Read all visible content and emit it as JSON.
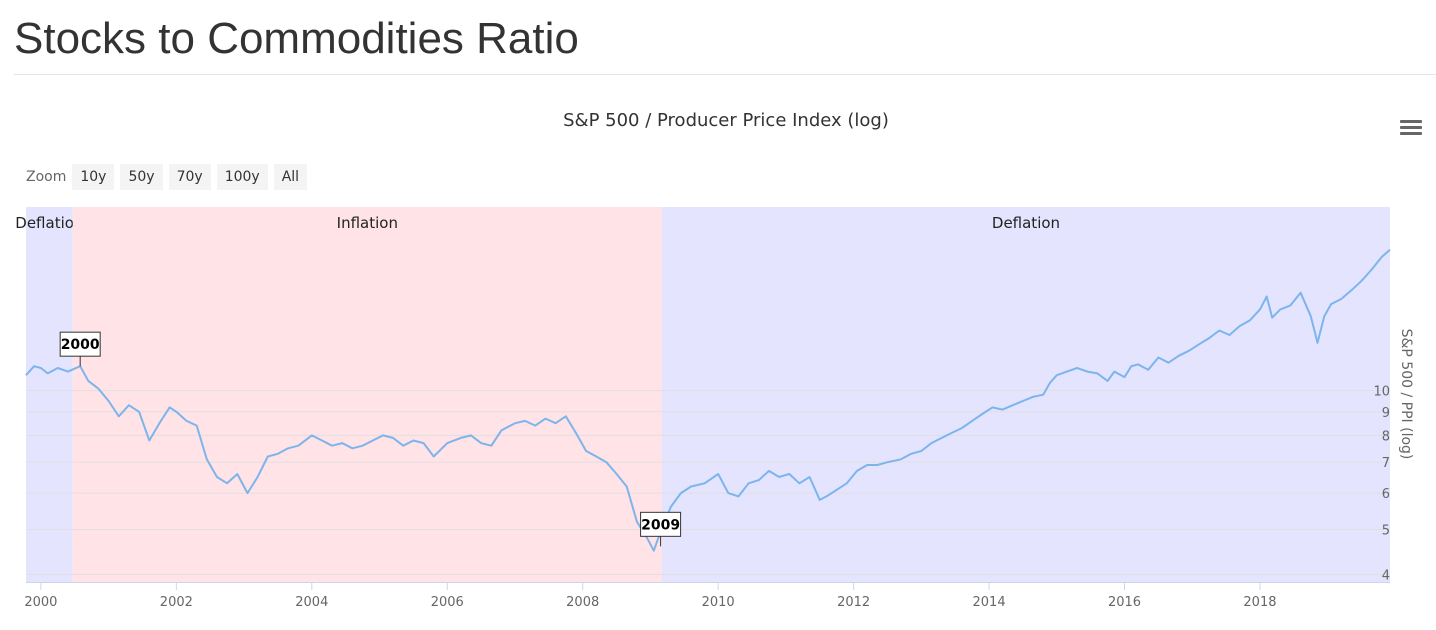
{
  "page": {
    "title": "Stocks to Commodities Ratio"
  },
  "toolbar": {
    "zoom_label": "Zoom",
    "zoom_buttons": [
      "10y",
      "50y",
      "70y",
      "100y",
      "All"
    ]
  },
  "colors": {
    "line": "#7cb5ec",
    "deflation_band": "#e4e4ff",
    "inflation_band": "#ffe3e6",
    "grid": "#e0e0e0"
  },
  "chart_data": {
    "type": "line",
    "title": "S&P 500 / Producer Price Index (log)",
    "ylabel": "S&P 500 / PPI (log)",
    "y_scale": "log",
    "xlim": [
      1999.78,
      2019.92
    ],
    "ylim": [
      3.85,
      25
    ],
    "x_ticks": [
      2000,
      2002,
      2004,
      2006,
      2008,
      2010,
      2012,
      2014,
      2016,
      2018
    ],
    "x_tick_labels": [
      "2000",
      "2002",
      "2004",
      "2006",
      "2008",
      "2010",
      "2012",
      "2014",
      "2016",
      "2018"
    ],
    "y_ticks": [
      4,
      5,
      6,
      7,
      8,
      9,
      10
    ],
    "y_tick_labels": [
      "4",
      "5",
      "6",
      "7",
      "8",
      "9",
      "10"
    ],
    "bands": [
      {
        "label": "Deflation",
        "from": 1999.78,
        "to": 2000.47,
        "kind": "deflation"
      },
      {
        "label": "Inflation",
        "from": 2000.47,
        "to": 2009.17,
        "kind": "inflation"
      },
      {
        "label": "Deflation",
        "from": 2009.17,
        "to": 2019.92,
        "kind": "deflation"
      }
    ],
    "flags": [
      {
        "label": "2000",
        "x": 2000.58,
        "y": 11.3
      },
      {
        "label": "2009",
        "x": 2009.15,
        "y": 4.6
      }
    ],
    "series": [
      {
        "name": "S&P 500 / PPI",
        "x": [
          1999.78,
          1999.9,
          2000.0,
          2000.1,
          2000.25,
          2000.4,
          2000.58,
          2000.7,
          2000.85,
          2001.0,
          2001.15,
          2001.3,
          2001.45,
          2001.6,
          2001.75,
          2001.9,
          2002.0,
          2002.15,
          2002.3,
          2002.45,
          2002.6,
          2002.75,
          2002.9,
          2003.05,
          2003.2,
          2003.35,
          2003.5,
          2003.65,
          2003.8,
          2004.0,
          2004.15,
          2004.3,
          2004.45,
          2004.6,
          2004.75,
          2004.9,
          2005.05,
          2005.2,
          2005.35,
          2005.5,
          2005.65,
          2005.8,
          2006.0,
          2006.2,
          2006.35,
          2006.5,
          2006.65,
          2006.8,
          2007.0,
          2007.15,
          2007.3,
          2007.45,
          2007.6,
          2007.75,
          2007.9,
          2008.05,
          2008.2,
          2008.35,
          2008.5,
          2008.65,
          2008.8,
          2008.95,
          2009.05,
          2009.15,
          2009.3,
          2009.45,
          2009.6,
          2009.8,
          2010.0,
          2010.15,
          2010.3,
          2010.45,
          2010.6,
          2010.75,
          2010.9,
          2011.05,
          2011.2,
          2011.35,
          2011.5,
          2011.6,
          2011.75,
          2011.9,
          2012.05,
          2012.2,
          2012.35,
          2012.5,
          2012.7,
          2012.85,
          2013.0,
          2013.15,
          2013.3,
          2013.45,
          2013.6,
          2013.75,
          2013.9,
          2014.05,
          2014.2,
          2014.35,
          2014.5,
          2014.65,
          2014.8,
          2014.9,
          2015.0,
          2015.15,
          2015.3,
          2015.45,
          2015.6,
          2015.75,
          2015.85,
          2016.0,
          2016.1,
          2016.2,
          2016.35,
          2016.5,
          2016.65,
          2016.8,
          2016.95,
          2017.1,
          2017.25,
          2017.4,
          2017.55,
          2017.7,
          2017.85,
          2018.0,
          2018.1,
          2018.18,
          2018.3,
          2018.45,
          2018.6,
          2018.75,
          2018.85,
          2018.95,
          2019.05,
          2019.2,
          2019.35,
          2019.5,
          2019.65,
          2019.8,
          2019.92
        ],
        "values": [
          10.8,
          11.3,
          11.2,
          10.9,
          11.2,
          11.0,
          11.3,
          10.5,
          10.1,
          9.5,
          8.8,
          9.3,
          9.0,
          7.8,
          8.5,
          9.2,
          9.0,
          8.6,
          8.4,
          7.1,
          6.5,
          6.3,
          6.6,
          6.0,
          6.5,
          7.2,
          7.3,
          7.5,
          7.6,
          8.0,
          7.8,
          7.6,
          7.7,
          7.5,
          7.6,
          7.8,
          8.0,
          7.9,
          7.6,
          7.8,
          7.7,
          7.2,
          7.7,
          7.9,
          8.0,
          7.7,
          7.6,
          8.2,
          8.5,
          8.6,
          8.4,
          8.7,
          8.5,
          8.8,
          8.1,
          7.4,
          7.2,
          7.0,
          6.6,
          6.2,
          5.2,
          4.8,
          4.5,
          4.95,
          5.6,
          6.0,
          6.2,
          6.3,
          6.6,
          6.0,
          5.9,
          6.3,
          6.4,
          6.7,
          6.5,
          6.6,
          6.3,
          6.5,
          5.8,
          5.9,
          6.1,
          6.3,
          6.7,
          6.9,
          6.9,
          7.0,
          7.1,
          7.3,
          7.4,
          7.7,
          7.9,
          8.1,
          8.3,
          8.6,
          8.9,
          9.2,
          9.1,
          9.3,
          9.5,
          9.7,
          9.8,
          10.4,
          10.8,
          11.0,
          11.2,
          11.0,
          10.9,
          10.5,
          11.0,
          10.7,
          11.3,
          11.4,
          11.1,
          11.8,
          11.5,
          11.9,
          12.2,
          12.6,
          13.0,
          13.5,
          13.2,
          13.8,
          14.2,
          15.0,
          16.0,
          14.4,
          15.0,
          15.3,
          16.3,
          14.5,
          12.7,
          14.5,
          15.4,
          15.8,
          16.5,
          17.3,
          18.3,
          19.5,
          20.2
        ]
      }
    ]
  }
}
